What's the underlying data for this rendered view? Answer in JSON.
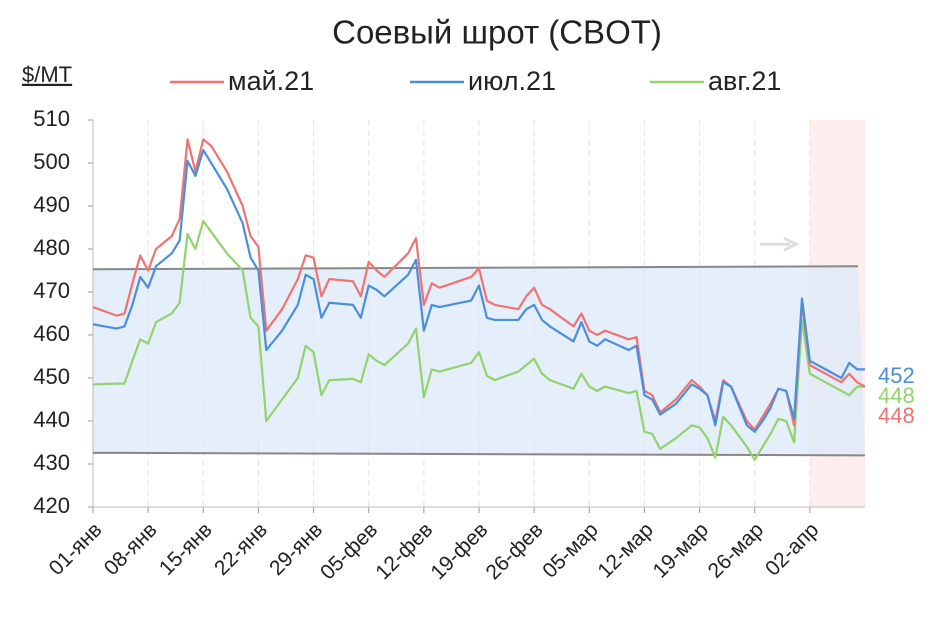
{
  "chart_data": {
    "type": "line",
    "title": "Соевый шрот (CBOT)",
    "y_label": "$/MT",
    "x": [
      0,
      3,
      4,
      5,
      6,
      7,
      8,
      10,
      11,
      12,
      13,
      14,
      15,
      17,
      19,
      20,
      21,
      22,
      24,
      26,
      27,
      28,
      29,
      30,
      33,
      34,
      35,
      36,
      37,
      40,
      41,
      42,
      43,
      44,
      48,
      49,
      50,
      51,
      54,
      55,
      56,
      57,
      58,
      61,
      62,
      63,
      64,
      65,
      68,
      69,
      70,
      71,
      72,
      74,
      76,
      77,
      78,
      79,
      80,
      81,
      83,
      84,
      85,
      86,
      87,
      88,
      89,
      90,
      91,
      93,
      95,
      96,
      97,
      98
    ],
    "series": [
      {
        "name": "май.21",
        "color": "#f07272",
        "end_label": "448",
        "values": [
          466.5,
          464.5,
          465,
          472,
          478.5,
          475,
          480,
          483,
          487,
          505.5,
          498,
          505.5,
          504,
          498,
          490,
          483,
          480.5,
          461,
          466,
          473,
          478.5,
          478,
          469,
          473,
          472.5,
          469,
          477,
          475,
          473.5,
          479,
          482.5,
          467,
          472,
          471,
          473.5,
          475.5,
          468,
          467,
          466,
          469,
          471,
          467,
          466,
          462,
          465,
          461,
          460,
          461,
          459,
          459.5,
          447,
          446,
          442,
          445,
          449.5,
          448,
          446,
          440,
          449.5,
          448,
          440,
          438,
          441,
          444,
          447.5,
          447,
          439,
          467.5,
          453,
          451,
          449,
          451,
          449,
          448
        ]
      },
      {
        "name": "июл.21",
        "color": "#4a8fdc",
        "end_label": "452",
        "values": [
          462.5,
          461.5,
          462,
          467,
          473.5,
          471,
          476,
          479,
          482,
          500.5,
          497,
          503,
          500,
          494,
          486,
          478,
          475,
          456.5,
          461,
          467,
          474,
          473,
          464,
          467.5,
          467,
          464,
          471.5,
          470.5,
          469,
          474,
          477.5,
          461,
          467,
          466.5,
          468,
          471.5,
          464,
          463.5,
          463.5,
          466,
          467,
          463.5,
          462,
          458.5,
          463,
          458.5,
          457.5,
          459,
          456.5,
          457.5,
          446,
          445,
          441.5,
          444,
          448.5,
          447.5,
          446,
          439,
          449,
          448,
          439,
          437.5,
          440,
          443,
          447.5,
          447,
          440.5,
          468.5,
          454,
          452,
          450,
          453.5,
          452,
          452
        ]
      },
      {
        "name": "авг.21",
        "color": "#92d36e",
        "end_label": "448",
        "values": [
          448.5,
          448.7,
          448.7,
          454,
          459,
          458,
          463,
          465,
          467.5,
          483.5,
          480,
          486.5,
          484,
          479,
          475,
          464,
          462,
          440,
          445,
          450,
          457.5,
          456,
          446,
          449.5,
          449.8,
          449,
          455.5,
          454,
          453,
          458,
          461.5,
          445.5,
          452,
          451.5,
          453.5,
          456,
          450.5,
          449.5,
          451.5,
          453,
          454.5,
          451,
          449.5,
          447.5,
          451,
          448,
          447,
          448,
          446.5,
          447,
          437.5,
          437,
          433.5,
          436,
          439,
          438.5,
          436,
          431.5,
          441,
          439,
          434,
          431,
          434,
          437,
          440.5,
          440,
          435,
          463.5,
          451,
          449,
          447,
          446,
          448,
          448
        ]
      }
    ],
    "channel": {
      "upper": [
        475.3,
        476
      ],
      "lower": [
        432.6,
        432
      ]
    },
    "highlight_from": 91,
    "xlim": [
      0,
      98
    ],
    "ylim": [
      420,
      510
    ],
    "yticks": [
      420,
      430,
      440,
      450,
      460,
      470,
      480,
      490,
      500,
      510
    ],
    "xticks": [
      {
        "value": 0,
        "label": "01-янв"
      },
      {
        "value": 7,
        "label": "08-янв"
      },
      {
        "value": 14,
        "label": "15-янв"
      },
      {
        "value": 21,
        "label": "22-янв"
      },
      {
        "value": 28,
        "label": "29-янв"
      },
      {
        "value": 35,
        "label": "05-фев"
      },
      {
        "value": 42,
        "label": "12-фев"
      },
      {
        "value": 49,
        "label": "19-фев"
      },
      {
        "value": 56,
        "label": "26-фев"
      },
      {
        "value": 63,
        "label": "05-мар"
      },
      {
        "value": 70,
        "label": "12-мар"
      },
      {
        "value": 77,
        "label": "19-мар"
      },
      {
        "value": 84,
        "label": "26-мар"
      },
      {
        "value": 91,
        "label": "02-апр"
      }
    ],
    "grid": true
  }
}
